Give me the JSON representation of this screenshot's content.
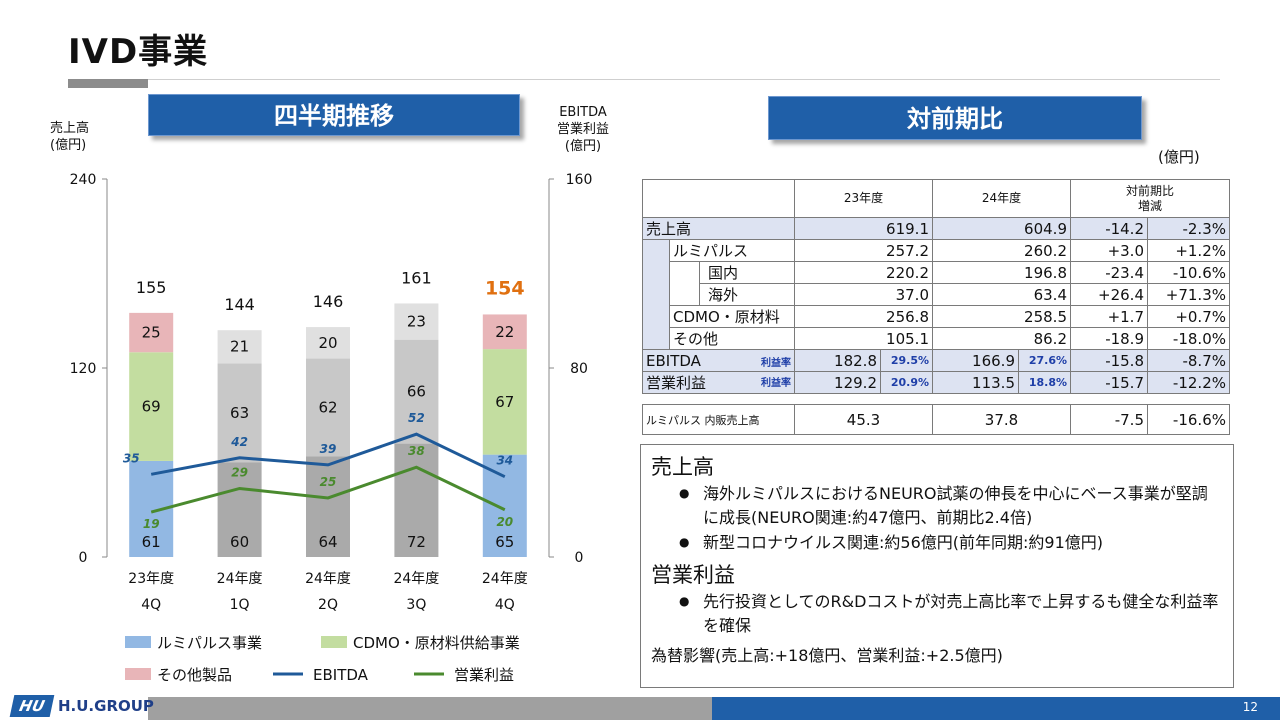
{
  "header": {
    "title": "IVD事業",
    "left_banner": "四半期推移",
    "right_banner": "対前期比"
  },
  "chart_data": {
    "type": "bar",
    "stacked": true,
    "categories": [
      "23年度 4Q",
      "24年度 1Q",
      "24年度 2Q",
      "24年度 3Q",
      "24年度 4Q"
    ],
    "category_lines": [
      [
        "23年度",
        "4Q"
      ],
      [
        "24年度",
        "1Q"
      ],
      [
        "24年度",
        "2Q"
      ],
      [
        "24年度",
        "3Q"
      ],
      [
        "24年度",
        "4Q"
      ]
    ],
    "left_axis": {
      "title": [
        "売上高",
        "(億円)"
      ],
      "min": 0,
      "max": 240,
      "ticks": [
        0,
        120,
        240
      ]
    },
    "right_axis": {
      "title": [
        "EBITDA",
        "営業利益",
        "(億円)"
      ],
      "min": 0,
      "max": 160,
      "ticks": [
        0,
        80,
        160
      ]
    },
    "totals": [
      155,
      144,
      146,
      161,
      154
    ],
    "highlight_total_index": 4,
    "highlight_total_color": "#e07010",
    "series": [
      {
        "name": "ルミパルス事業",
        "axis": "left",
        "kind": "bar",
        "values": [
          61,
          60,
          64,
          72,
          65
        ]
      },
      {
        "name": "CDMO・原材料供給事業",
        "axis": "left",
        "kind": "bar",
        "values": [
          69,
          63,
          62,
          66,
          67
        ]
      },
      {
        "name": "その他製品",
        "axis": "left",
        "kind": "bar",
        "values": [
          25,
          21,
          20,
          23,
          22
        ]
      },
      {
        "name": "EBITDA",
        "axis": "right",
        "kind": "line",
        "values": [
          35,
          42,
          39,
          52,
          34
        ]
      },
      {
        "name": "営業利益",
        "axis": "right",
        "kind": "line",
        "values": [
          19,
          29,
          25,
          38,
          20
        ]
      }
    ],
    "colors": {
      "lumi_highlight": "#92b8e3",
      "cdmo_highlight": "#c3dda0",
      "other_highlight": "#e8b5b8",
      "lumi_base": "#aaaaaa",
      "cdmo_base": "#c8c8c8",
      "other_base": "#e0e0e0",
      "ebitda": "#1f5a99",
      "op": "#4a8a2e"
    },
    "highlight_bar_indices": [
      0,
      4
    ],
    "legend": [
      {
        "name": "ルミパルス事業",
        "kind": "box",
        "color": "#92b8e3"
      },
      {
        "name": "CDMO・原材料供給事業",
        "kind": "box",
        "color": "#c3dda0"
      },
      {
        "name": "その他製品",
        "kind": "box",
        "color": "#e8b5b8"
      },
      {
        "name": "EBITDA",
        "kind": "line",
        "color": "#1f5a99"
      },
      {
        "name": "営業利益",
        "kind": "line",
        "color": "#4a8a2e"
      }
    ]
  },
  "table": {
    "unit": "(億円)",
    "col_fy23": "23年度",
    "col_fy24": "24年度",
    "col_change_l1": "対前期比",
    "col_change_l2": "増減",
    "margin_tag": "利益率",
    "rows": [
      {
        "label": "売上高",
        "fy23": "619.1",
        "fy24": "604.9",
        "diff": "-14.2",
        "pct": "-2.3%"
      },
      {
        "label": "ルミパルス",
        "fy23": "257.2",
        "fy24": "260.2",
        "diff": "+3.0",
        "pct": "+1.2%"
      },
      {
        "label": "国内",
        "fy23": "220.2",
        "fy24": "196.8",
        "diff": "-23.4",
        "pct": "-10.6%"
      },
      {
        "label": "海外",
        "fy23": "37.0",
        "fy24": "63.4",
        "diff": "+26.4",
        "pct": "+71.3%"
      },
      {
        "label": "CDMO・原材料",
        "fy23": "256.8",
        "fy24": "258.5",
        "diff": "+1.7",
        "pct": "+0.7%"
      },
      {
        "label": "その他",
        "fy23": "105.1",
        "fy24": "86.2",
        "diff": "-18.9",
        "pct": "-18.0%"
      },
      {
        "label": "EBITDA",
        "fy23": "182.8",
        "m23": "29.5%",
        "fy24": "166.9",
        "m24": "27.6%",
        "diff": "-15.8",
        "pct": "-8.7%"
      },
      {
        "label": "営業利益",
        "fy23": "129.2",
        "m23": "20.9%",
        "fy24": "113.5",
        "m24": "18.8%",
        "diff": "-15.7",
        "pct": "-12.2%"
      }
    ],
    "extra": {
      "label": "ルミパルス 内販売上高",
      "fy23": "45.3",
      "fy24": "37.8",
      "diff": "-7.5",
      "pct": "-16.6%"
    }
  },
  "notes": {
    "sales_heading": "売上高",
    "sales_bullets": [
      "海外ルミパルスにおけるNEURO試薬の伸長を中心にベース事業が堅調に成長(NEURO関連:約47億円、前期比2.4倍)",
      "新型コロナウイルス関連:約56億円(前年同期:約91億円)"
    ],
    "op_heading": "営業利益",
    "op_bullets": [
      "先行投資としてのR&Dコストが対売上高比率で上昇するも健全な利益率を確保"
    ],
    "fx": "為替影響(売上高:+18億円、営業利益:+2.5億円)",
    "bullet_mark": "●"
  },
  "footer": {
    "logo_mark": "HU",
    "logo_text": "H.U.GROUP",
    "page": "12"
  }
}
